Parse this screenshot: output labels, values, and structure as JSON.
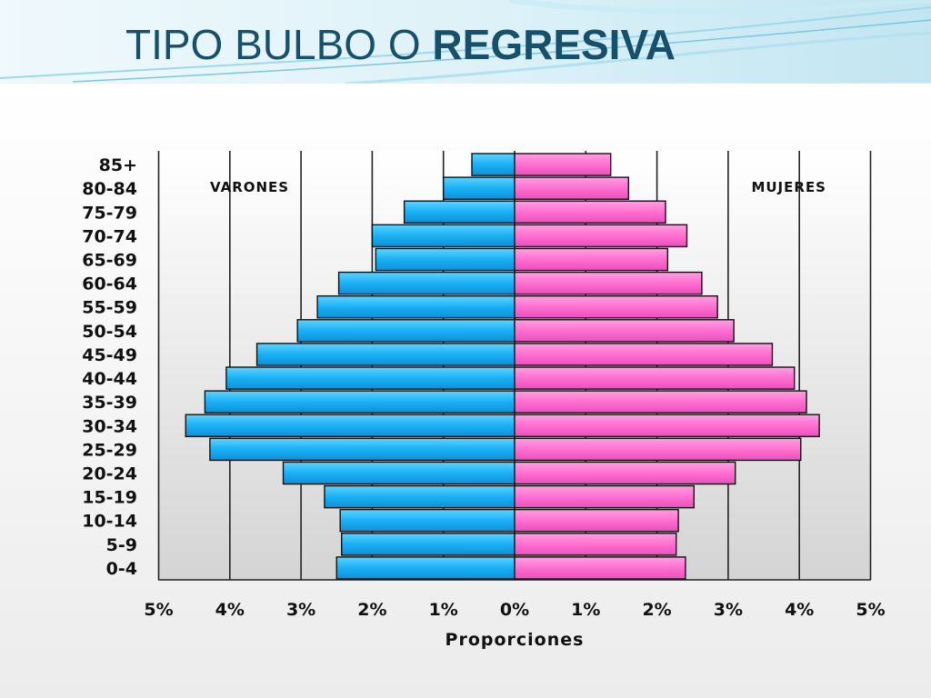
{
  "slide": {
    "title_regular": "TIPO BULBO O ",
    "title_bold": "REGRESIVA"
  },
  "colors": {
    "title": "#17506b",
    "male": "#1ab0f5",
    "female": "#ff6fd0",
    "header_wave": "#9ed8ea"
  },
  "chart_data": {
    "type": "bar",
    "orientation": "horizontal",
    "subtype": "population-pyramid",
    "categories": [
      "0-4",
      "5-9",
      "10-14",
      "15-19",
      "20-24",
      "25-29",
      "30-34",
      "35-39",
      "40-44",
      "45-49",
      "50-54",
      "55-59",
      "60-64",
      "65-69",
      "70-74",
      "75-79",
      "80-84",
      "85+"
    ],
    "series": [
      {
        "name": "VARONES",
        "side": "left",
        "values": [
          2.5,
          2.43,
          2.45,
          2.67,
          3.25,
          4.28,
          4.62,
          4.35,
          4.05,
          3.62,
          3.05,
          2.77,
          2.47,
          1.95,
          2.0,
          1.55,
          1.0,
          0.6
        ]
      },
      {
        "name": "MUJERES",
        "side": "right",
        "values": [
          2.4,
          2.27,
          2.3,
          2.52,
          3.1,
          4.02,
          4.28,
          4.1,
          3.93,
          3.62,
          3.08,
          2.85,
          2.63,
          2.15,
          2.42,
          2.12,
          1.6,
          1.35
        ]
      }
    ],
    "xlabel": "Proporciones",
    "ylabel": "",
    "xlim": [
      -5,
      5
    ],
    "xticks": [
      "5%",
      "4%",
      "3%",
      "2%",
      "1%",
      "0%",
      "1%",
      "2%",
      "3%",
      "4%",
      "5%"
    ],
    "grid": "vertical"
  }
}
